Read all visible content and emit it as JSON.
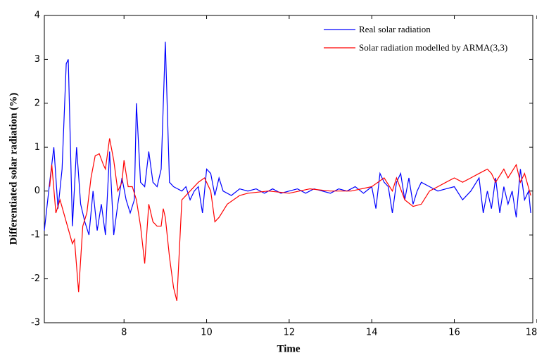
{
  "chart_data": {
    "type": "line",
    "xlabel": "Time",
    "ylabel": "Differentiated solar radiation (%)",
    "xlim": [
      6.07,
      17.9
    ],
    "ylim": [
      -3,
      4
    ],
    "xticks": [
      8,
      10,
      12,
      14,
      16,
      18
    ],
    "yticks": [
      -3,
      -2,
      -1,
      0,
      1,
      2,
      3,
      4
    ],
    "grid": false,
    "legend": "upper right",
    "series": [
      {
        "name": "Real solar radiation",
        "color": "#0000ff",
        "x": [
          6.07,
          6.2,
          6.3,
          6.4,
          6.5,
          6.6,
          6.65,
          6.75,
          6.85,
          6.95,
          7.05,
          7.15,
          7.25,
          7.35,
          7.45,
          7.55,
          7.65,
          7.75,
          7.85,
          7.95,
          8.05,
          8.15,
          8.25,
          8.3,
          8.4,
          8.5,
          8.6,
          8.7,
          8.8,
          8.9,
          9.0,
          9.1,
          9.2,
          9.3,
          9.4,
          9.5,
          9.6,
          9.7,
          9.8,
          9.9,
          10.0,
          10.1,
          10.2,
          10.3,
          10.4,
          10.6,
          10.8,
          11.0,
          11.2,
          11.4,
          11.6,
          11.8,
          12.0,
          12.2,
          12.4,
          12.6,
          12.8,
          13.0,
          13.2,
          13.4,
          13.6,
          13.8,
          14.0,
          14.1,
          14.2,
          14.3,
          14.4,
          14.5,
          14.6,
          14.7,
          14.8,
          14.9,
          15.0,
          15.1,
          15.2,
          15.4,
          15.6,
          15.8,
          16.0,
          16.2,
          16.4,
          16.6,
          16.7,
          16.8,
          16.9,
          17.0,
          17.1,
          17.2,
          17.3,
          17.4,
          17.5,
          17.6,
          17.7,
          17.8,
          17.85
        ],
        "values": [
          -0.9,
          0.2,
          1.0,
          -0.4,
          0.5,
          2.9,
          3.0,
          -0.8,
          1.0,
          -0.3,
          -0.7,
          -1.0,
          0.0,
          -0.9,
          -0.3,
          -1.0,
          0.9,
          -1.0,
          -0.3,
          0.3,
          -0.2,
          -0.5,
          -0.2,
          2.0,
          0.2,
          0.1,
          0.9,
          0.2,
          0.1,
          0.5,
          3.4,
          0.2,
          0.1,
          0.05,
          0.0,
          0.1,
          -0.2,
          0.0,
          0.1,
          -0.5,
          0.5,
          0.4,
          -0.1,
          0.3,
          0.0,
          -0.1,
          0.05,
          0.0,
          0.05,
          -0.05,
          0.05,
          -0.05,
          0.0,
          0.05,
          -0.05,
          0.05,
          0.0,
          -0.05,
          0.05,
          0.0,
          0.1,
          -0.05,
          0.1,
          -0.4,
          0.4,
          0.2,
          0.1,
          -0.5,
          0.2,
          0.4,
          -0.2,
          0.3,
          -0.3,
          0.0,
          0.2,
          0.1,
          0.0,
          0.05,
          0.1,
          -0.2,
          0.0,
          0.3,
          -0.5,
          0.0,
          -0.4,
          0.3,
          -0.5,
          0.1,
          -0.3,
          0.0,
          -0.6,
          0.5,
          -0.2,
          0.0,
          -0.5
        ]
      },
      {
        "name": "Solar radiation modelled by ARMA(3,3)",
        "color": "#ff0000",
        "x": [
          6.2,
          6.25,
          6.35,
          6.45,
          6.6,
          6.75,
          6.8,
          6.9,
          7.0,
          7.1,
          7.2,
          7.3,
          7.4,
          7.5,
          7.55,
          7.65,
          7.75,
          7.85,
          7.95,
          8.0,
          8.1,
          8.2,
          8.3,
          8.4,
          8.5,
          8.6,
          8.7,
          8.8,
          8.9,
          8.95,
          9.0,
          9.1,
          9.2,
          9.28,
          9.4,
          9.6,
          9.8,
          9.95,
          10.1,
          10.2,
          10.3,
          10.5,
          10.8,
          11.0,
          11.5,
          12.0,
          12.5,
          13.0,
          13.5,
          14.0,
          14.3,
          14.5,
          14.6,
          14.8,
          15.0,
          15.2,
          15.4,
          15.6,
          15.8,
          16.0,
          16.2,
          16.4,
          16.6,
          16.8,
          16.9,
          17.0,
          17.2,
          17.3,
          17.5,
          17.6,
          17.7,
          17.85
        ],
        "values": [
          0.1,
          0.6,
          -0.5,
          -0.2,
          -0.7,
          -1.2,
          -1.1,
          -2.3,
          -0.8,
          -0.5,
          0.3,
          0.8,
          0.85,
          0.6,
          0.5,
          1.2,
          0.7,
          0.0,
          0.2,
          0.7,
          0.1,
          0.1,
          -0.2,
          -0.8,
          -1.65,
          -0.3,
          -0.7,
          -0.8,
          -0.8,
          -0.4,
          -0.6,
          -1.5,
          -2.2,
          -2.5,
          -0.2,
          0.0,
          0.2,
          0.3,
          0.0,
          -0.7,
          -0.6,
          -0.3,
          -0.1,
          -0.05,
          0.0,
          -0.05,
          0.05,
          0.0,
          0.0,
          0.1,
          0.3,
          0.0,
          0.3,
          -0.2,
          -0.35,
          -0.3,
          0.0,
          0.1,
          0.2,
          0.3,
          0.2,
          0.3,
          0.4,
          0.5,
          0.4,
          0.2,
          0.5,
          0.3,
          0.6,
          0.2,
          0.4,
          -0.1
        ]
      }
    ]
  }
}
